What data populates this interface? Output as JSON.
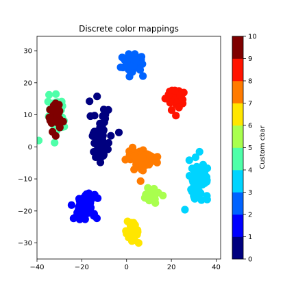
{
  "chart_data": {
    "type": "scatter",
    "title": "Discrete color mappings",
    "xlabel": "",
    "ylabel": "",
    "xlim": [
      -40,
      42
    ],
    "ylim": [
      -35,
      34.5
    ],
    "xticks": [
      -40,
      -20,
      0,
      20,
      40
    ],
    "yticks": [
      -30,
      -20,
      -10,
      0,
      10,
      20,
      30
    ],
    "grid": false,
    "colorbar": {
      "label": "Custom cbar",
      "range": [
        0,
        10
      ],
      "ticks": [
        0,
        1,
        2,
        3,
        4,
        5,
        6,
        7,
        8,
        9,
        10
      ],
      "colors": [
        "#00007f",
        "#0000ff",
        "#0063ff",
        "#00d4ff",
        "#4effa9",
        "#a9ff4e",
        "#ffe600",
        "#ff7b00",
        "#ff1300",
        "#7f0000"
      ]
    },
    "clusters": [
      {
        "class": 0,
        "center": [
          -12,
          3
        ],
        "spread": [
          4,
          7
        ],
        "count": 70
      },
      {
        "class": 1,
        "center": [
          -19,
          -19
        ],
        "spread": [
          4.5,
          4
        ],
        "count": 80
      },
      {
        "class": 2,
        "center": [
          3,
          26
        ],
        "spread": [
          4.5,
          3
        ],
        "count": 50
      },
      {
        "class": 3,
        "center": [
          32,
          -10
        ],
        "spread": [
          4,
          5
        ],
        "count": 60
      },
      {
        "class": 4,
        "center": [
          -31,
          10
        ],
        "spread": [
          3.5,
          6
        ],
        "count": 45
      },
      {
        "class": 5,
        "center": [
          11,
          -15
        ],
        "spread": [
          3,
          2
        ],
        "count": 25
      },
      {
        "class": 6,
        "center": [
          3,
          -27
        ],
        "spread": [
          2.5,
          3
        ],
        "count": 45
      },
      {
        "class": 7,
        "center": [
          7,
          -4
        ],
        "spread": [
          6,
          3
        ],
        "count": 70
      },
      {
        "class": 8,
        "center": [
          22,
          15
        ],
        "spread": [
          3.5,
          3
        ],
        "count": 55
      },
      {
        "class": 9,
        "center": [
          -32,
          10
        ],
        "spread": [
          3,
          5
        ],
        "count": 35
      }
    ]
  }
}
